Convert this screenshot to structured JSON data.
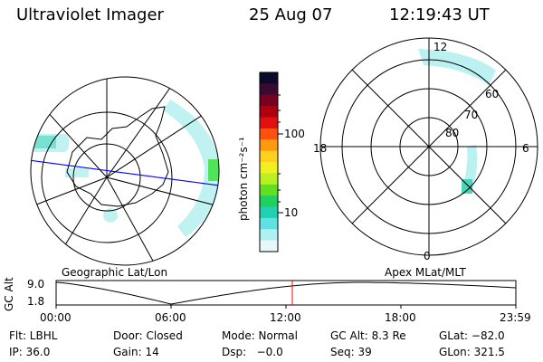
{
  "header": {
    "title": "Ultraviolet Imager",
    "date": "25 Aug 07",
    "time": "12:19:43 UT"
  },
  "left_map": {
    "label": "Geographic Lat/Lon"
  },
  "right_map": {
    "label": "Apex MLat/MLT",
    "mlt_labels": [
      "12",
      "18",
      "6",
      "0"
    ],
    "mlat_labels": [
      "60",
      "70",
      "80"
    ]
  },
  "colorbar": {
    "unit_label": "photon cm⁻²s⁻¹",
    "ticks": [
      "100",
      "10"
    ],
    "colors": [
      "#0a0a2a",
      "#3a0a30",
      "#7a0020",
      "#b00010",
      "#e01010",
      "#ff5010",
      "#ff9a10",
      "#ffd020",
      "#f0f020",
      "#b8f020",
      "#60e020",
      "#20d060",
      "#20d0b0",
      "#60e0e0",
      "#b0f0f0",
      "#e8f8f8"
    ]
  },
  "altitude_plot": {
    "ylabel": "GC Alt",
    "yticks": [
      "9.0",
      "1.8"
    ],
    "xticks": [
      "00:00",
      "06:00",
      "12:00",
      "18:00",
      "23:59"
    ],
    "current_time_hours": 12.33,
    "marker_color": "#ff0000"
  },
  "info": {
    "flt": "Flt: LBHL",
    "door": "Door: Closed",
    "mode": "Mode: Normal",
    "gc_alt": "GC Alt: 8.3 Re",
    "glat": "GLat: −82.0",
    "ip": "IP: 36.0",
    "gain": "Gain: 14",
    "dsp": "Dsp:   −0.0",
    "seq": "Seq: 39",
    "glon": "GLon: 321.5"
  },
  "colors": {
    "aurora": "#8ee8e8",
    "aurora_bright": "#30d0b0",
    "aurora_green": "#40e040",
    "blue_line": "#0000ff"
  }
}
